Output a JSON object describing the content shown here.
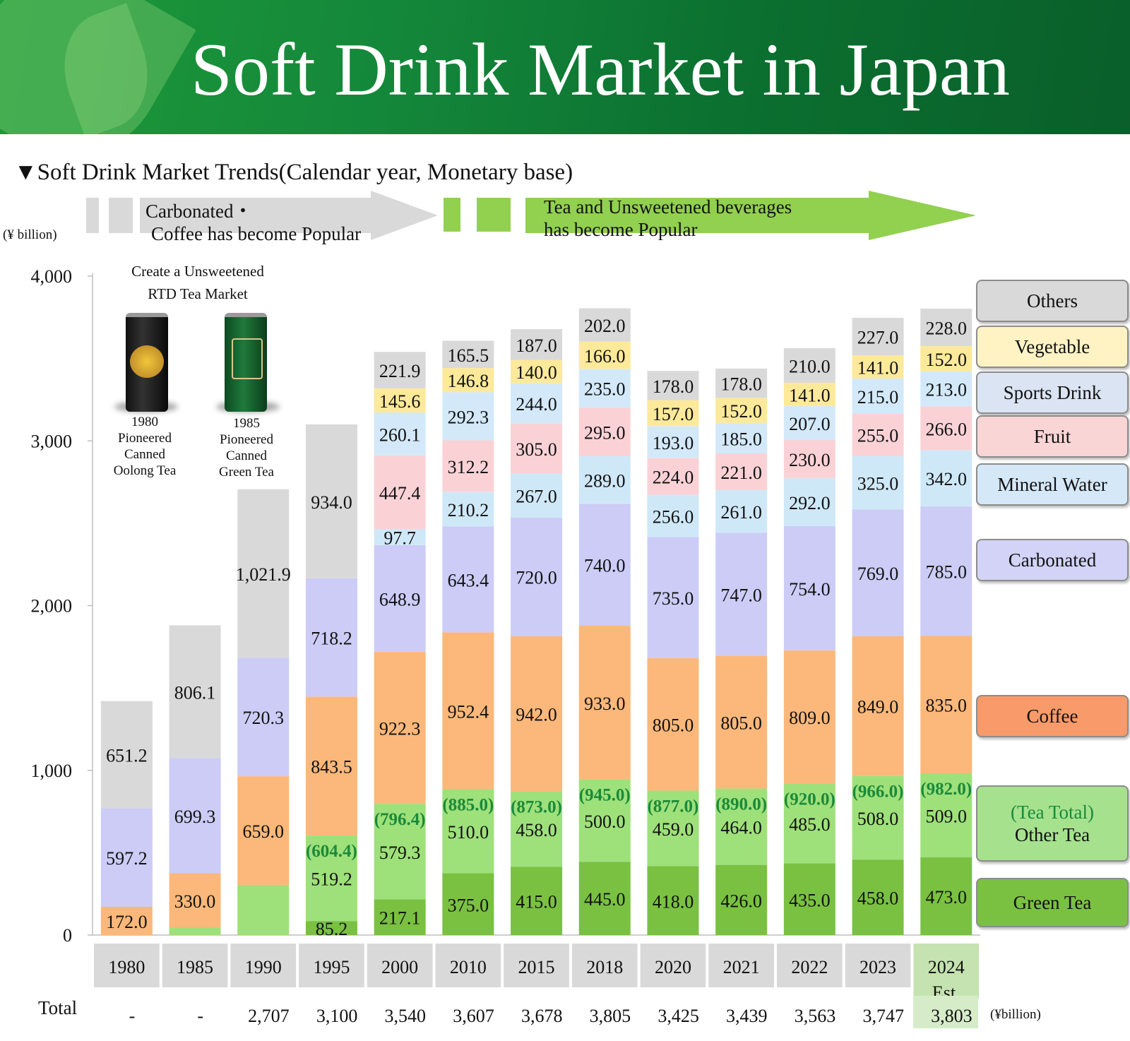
{
  "header": {
    "title": "Soft Drink Market in Japan"
  },
  "subtitle": "▼Soft Drink Market Trends(Calendar year, Monetary base)",
  "unit_left": "(¥ billion)",
  "unit_right": "(¥billion)",
  "arrows": {
    "first_line1": "Carbonated・",
    "first_line2": "Coffee has become Popular",
    "second_line1": "Tea and Unsweetened beverages",
    "second_line2": "has become Popular"
  },
  "annotation": {
    "title_line1": "Create a Unsweetened",
    "title_line2": "RTD Tea Market",
    "can1": [
      "1980",
      "Pioneered",
      "Canned",
      "Oolong Tea"
    ],
    "can2": [
      "1985",
      "Pioneered",
      "Canned",
      "Green Tea"
    ]
  },
  "legend": [
    {
      "name": "Others",
      "color": "#d9d9d9"
    },
    {
      "name": "Vegetable",
      "color": "#fff3c4"
    },
    {
      "name": "Sports Drink",
      "color": "#dae4f2"
    },
    {
      "name": "Fruit",
      "color": "#fad5d5"
    },
    {
      "name": "Mineral Water",
      "color": "#d5e8f7"
    },
    {
      "name": "Carbonated",
      "color": "#d3d3f7"
    },
    {
      "name": "Coffee",
      "color": "#f89a6a"
    },
    {
      "name": "(Tea Total)",
      "name2": "Other Tea",
      "color": "#a6e28e"
    },
    {
      "name": "Green Tea",
      "color": "#7ac142"
    }
  ],
  "total_label": "Total",
  "chart_data": {
    "type": "bar",
    "stacked": true,
    "title": "Soft Drink Market Trends(Calendar year, Monetary base)",
    "ylabel": "(¥ billion)",
    "ylim": [
      0,
      4000
    ],
    "yticks": [
      "0",
      "1,000",
      "2,000",
      "3,000",
      "4,000"
    ],
    "categories": [
      "1980",
      "1985",
      "1990",
      "1995",
      "2000",
      "2010",
      "2015",
      "2018",
      "2020",
      "2021",
      "2022",
      "2023",
      "2024"
    ],
    "category_sublabels": [
      "",
      "",
      "",
      "",
      "",
      "",
      "",
      "",
      "",
      "",
      "",
      "",
      "Est."
    ],
    "totals": [
      "-",
      "-",
      "2,707",
      "3,100",
      "3,540",
      "3,607",
      "3,678",
      "3,805",
      "3,425",
      "3,439",
      "3,563",
      "3,747",
      "3,803"
    ],
    "tea_total": [
      null,
      null,
      null,
      "(604.4)",
      "(796.4)",
      "(885.0)",
      "(873.0)",
      "(945.0)",
      "(877.0)",
      "(890.0)",
      "(920.0)",
      "(966.0)",
      "(982.0)"
    ],
    "series": [
      {
        "name": "Green Tea",
        "color": "#7ac142",
        "values": [
          null,
          null,
          null,
          85.2,
          217.1,
          375.0,
          415.0,
          445.0,
          418.0,
          426.0,
          435.0,
          458.0,
          473.0
        ],
        "labels": [
          "",
          "",
          "",
          "85.2",
          "217.1",
          "375.0",
          "415.0",
          "445.0",
          "418.0",
          "426.0",
          "435.0",
          "458.0",
          "473.0"
        ]
      },
      {
        "name": "Other Tea",
        "color": "#9ee07a",
        "values": [
          null,
          45,
          305,
          519.2,
          579.3,
          510.0,
          458.0,
          500.0,
          459.0,
          464.0,
          485.0,
          508.0,
          509.0
        ],
        "labels": [
          "",
          "",
          "",
          "519.2",
          "579.3",
          "510.0",
          "458.0",
          "500.0",
          "459.0",
          "464.0",
          "485.0",
          "508.0",
          "509.0"
        ]
      },
      {
        "name": "Coffee",
        "color": "#fbb87a",
        "values": [
          172.0,
          330.0,
          659.0,
          843.5,
          922.3,
          952.4,
          942.0,
          933.0,
          805.0,
          805.0,
          809.0,
          849.0,
          835.0
        ],
        "labels": [
          "172.0",
          "330.0",
          "659.0",
          "843.5",
          "922.3",
          "952.4",
          "942.0",
          "933.0",
          "805.0",
          "805.0",
          "809.0",
          "849.0",
          "835.0"
        ]
      },
      {
        "name": "Carbonated",
        "color": "#ccccf7",
        "values": [
          597.2,
          699.3,
          720.3,
          718.2,
          648.9,
          643.4,
          720.0,
          740.0,
          735.0,
          747.0,
          754.0,
          769.0,
          785.0
        ],
        "labels": [
          "597.2",
          "699.3",
          "720.3",
          "718.2",
          "648.9",
          "643.4",
          "720.0",
          "740.0",
          "735.0",
          "747.0",
          "754.0",
          "769.0",
          "785.0"
        ]
      },
      {
        "name": "Mineral Water",
        "color": "#cfe8f8",
        "values": [
          null,
          null,
          null,
          null,
          97.7,
          210.2,
          267.0,
          289.0,
          256.0,
          261.0,
          292.0,
          325.0,
          342.0
        ],
        "labels": [
          "",
          "",
          "",
          "",
          "97.7",
          "210.2",
          "267.0",
          "289.0",
          "256.0",
          "261.0",
          "292.0",
          "325.0",
          "342.0"
        ]
      },
      {
        "name": "Fruit",
        "color": "#fad2d6",
        "values": [
          null,
          null,
          null,
          null,
          447.4,
          312.2,
          305.0,
          295.0,
          224.0,
          221.0,
          230.0,
          255.0,
          266.0
        ],
        "labels": [
          "",
          "",
          "",
          "",
          "447.4",
          "312.2",
          "305.0",
          "295.0",
          "224.0",
          "221.0",
          "230.0",
          "255.0",
          "266.0"
        ]
      },
      {
        "name": "Sports Drink",
        "color": "#d3e9f9",
        "values": [
          null,
          null,
          null,
          null,
          260.1,
          292.3,
          244.0,
          235.0,
          193.0,
          185.0,
          207.0,
          215.0,
          213.0
        ],
        "labels": [
          "",
          "",
          "",
          "",
          "260.1",
          "292.3",
          "244.0",
          "235.0",
          "193.0",
          "185.0",
          "207.0",
          "215.0",
          "213.0"
        ]
      },
      {
        "name": "Vegetable",
        "color": "#fde99a",
        "values": [
          null,
          null,
          null,
          null,
          145.6,
          146.8,
          140.0,
          166.0,
          157.0,
          152.0,
          141.0,
          141.0,
          152.0
        ],
        "labels": [
          "",
          "",
          "",
          "",
          "145.6",
          "146.8",
          "140.0",
          "166.0",
          "157.0",
          "152.0",
          "141.0",
          "141.0",
          "152.0"
        ]
      },
      {
        "name": "Others",
        "color": "#d9d9d9",
        "values": [
          651.2,
          806.1,
          1021.9,
          934.0,
          221.9,
          165.5,
          187.0,
          202.0,
          178.0,
          178.0,
          210.0,
          227.0,
          228.0
        ],
        "labels": [
          "651.2",
          "806.1",
          "1,021.9",
          "934.0",
          "221.9",
          "165.5",
          "187.0",
          "202.0",
          "178.0",
          "178.0",
          "210.0",
          "227.0",
          "228.0"
        ]
      }
    ]
  }
}
